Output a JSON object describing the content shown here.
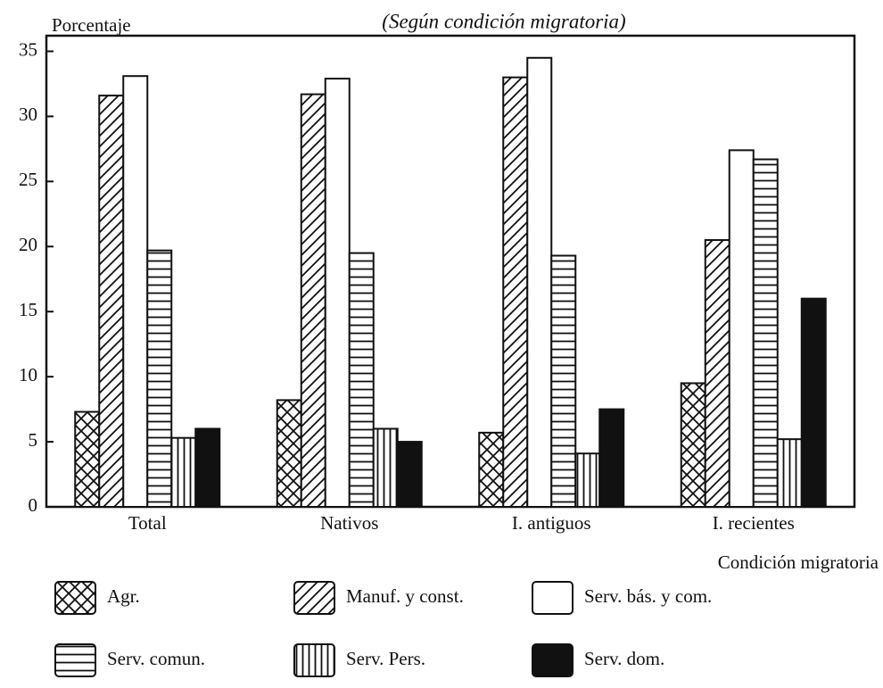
{
  "chart_data": {
    "type": "bar",
    "title": "(Según condición migratoria)",
    "y_label": "Porcentaje",
    "x_label": "Condición migratoria",
    "categories": [
      "Total",
      "Nativos",
      "I. antiguos",
      "I. recientes"
    ],
    "series": [
      {
        "name": "Agr.",
        "color": "#ffffff",
        "pattern": "crosshatch",
        "values": [
          7.3,
          8.2,
          5.7,
          9.5
        ]
      },
      {
        "name": "Manuf. y const.",
        "color": "#ffffff",
        "pattern": "diagonal",
        "values": [
          31.6,
          31.7,
          33.0,
          20.5
        ]
      },
      {
        "name": "Serv. bás. y com.",
        "color": "#ffffff",
        "pattern": "none",
        "values": [
          33.1,
          32.9,
          34.5,
          27.4
        ]
      },
      {
        "name": "Serv. comun.",
        "color": "#ffffff",
        "pattern": "horizontal",
        "values": [
          19.7,
          19.5,
          19.3,
          26.7
        ]
      },
      {
        "name": "Serv. Pers.",
        "color": "#ffffff",
        "pattern": "vertical",
        "values": [
          5.3,
          6.0,
          4.1,
          5.2
        ]
      },
      {
        "name": "Serv. dom.",
        "color": "#111111",
        "pattern": "solid",
        "values": [
          6.0,
          5.0,
          7.5,
          16.0
        ]
      }
    ],
    "ylim": [
      0,
      36.2
    ],
    "yticks": [
      0,
      5,
      10,
      15,
      20,
      25,
      30,
      35
    ],
    "grid": false
  }
}
